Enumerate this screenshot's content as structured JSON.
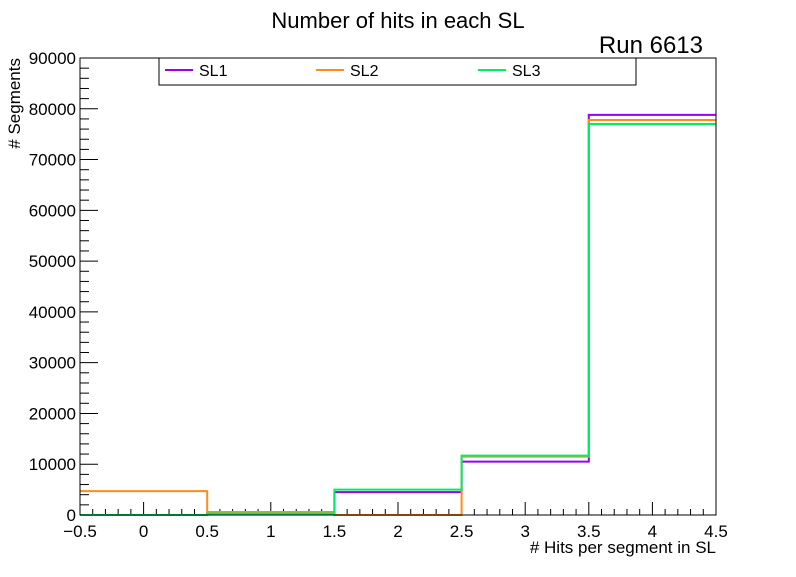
{
  "chart_data": {
    "type": "histogram-step",
    "title": "Number of hits in each SL",
    "annotation": "Run 6613",
    "xlabel": "# Hits per segment in SL",
    "ylabel": "# Segments",
    "xlim": [
      -0.5,
      4.5
    ],
    "ylim": [
      0,
      90000
    ],
    "x_ticks": [
      -0.5,
      0,
      0.5,
      1,
      1.5,
      2,
      2.5,
      3,
      3.5,
      4,
      4.5
    ],
    "x_tick_labels": [
      "−0.5",
      "0",
      "0.5",
      "1",
      "1.5",
      "2",
      "2.5",
      "3",
      "3.5",
      "4",
      "4.5"
    ],
    "y_ticks": [
      0,
      10000,
      20000,
      30000,
      40000,
      50000,
      60000,
      70000,
      80000,
      90000
    ],
    "y_tick_labels": [
      "0",
      "10000",
      "20000",
      "30000",
      "40000",
      "50000",
      "60000",
      "70000",
      "80000",
      "90000"
    ],
    "bin_edges": [
      -0.5,
      0.5,
      1.5,
      2.5,
      3.5,
      4.5
    ],
    "series": [
      {
        "name": "SL1",
        "color": "#9900ee",
        "values": [
          0,
          300,
          4500,
          10500,
          78800
        ]
      },
      {
        "name": "SL2",
        "color": "#ff8c1a",
        "values": [
          4700,
          600,
          0,
          11500,
          77800
        ]
      },
      {
        "name": "SL3",
        "color": "#00ee66",
        "values": [
          0,
          300,
          5000,
          11700,
          77000
        ]
      }
    ],
    "legend_position": "top"
  }
}
